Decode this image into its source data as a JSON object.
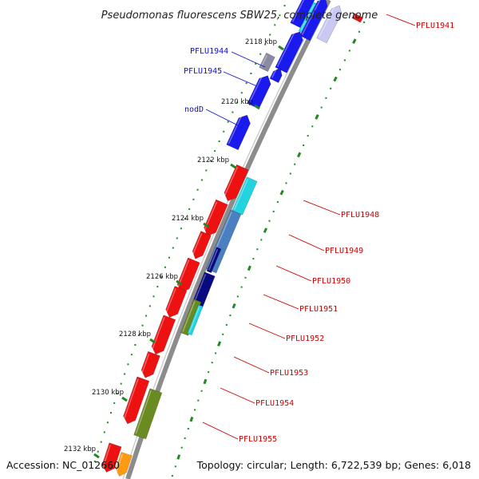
{
  "title": "Pseudomonas fluorescens SBW25, complete genome",
  "footer": {
    "accession": "Accession: NC_012660",
    "topology": "Topology: circular; Length: 6,722,539 bp; Genes: 6,018"
  },
  "colors": {
    "backbone": "#8c8c8c",
    "tick": "#1f8a1f",
    "forward_label": "#1010c8",
    "reverse_label": "#cc0000",
    "blue": "#1a1aee",
    "red": "#ee1111",
    "cyan": "#22d4e0",
    "steel": "#4a7fc0",
    "navy": "#0a0a80",
    "olive": "#6a8a22",
    "orange": "#ff9a10",
    "lavender": "#c9c9f2",
    "gray": "#8a8aa0"
  },
  "axis": {
    "unit": "kbp",
    "ticks": [
      {
        "kbp": 2118,
        "label": "2118 kbp"
      },
      {
        "kbp": 2120,
        "label": "2120 kbp"
      },
      {
        "kbp": 2122,
        "label": "2122 kbp"
      },
      {
        "kbp": 2124,
        "label": "2124 kbp"
      },
      {
        "kbp": 2126,
        "label": "2126 kbp"
      },
      {
        "kbp": 2128,
        "label": "2128 kbp"
      },
      {
        "kbp": 2130,
        "label": "2130 kbp"
      },
      {
        "kbp": 2132,
        "label": "2132 kbp"
      }
    ]
  },
  "labels": [
    {
      "text": "PFLU1944",
      "side": "forward"
    },
    {
      "text": "PFLU1945",
      "side": "forward"
    },
    {
      "text": "nodD",
      "side": "forward"
    },
    {
      "text": "PFLU1941",
      "side": "reverse"
    },
    {
      "text": "PFLU1948",
      "side": "reverse"
    },
    {
      "text": "PFLU1949",
      "side": "reverse"
    },
    {
      "text": "PFLU1950",
      "side": "reverse"
    },
    {
      "text": "PFLU1951",
      "side": "reverse"
    },
    {
      "text": "PFLU1952",
      "side": "reverse"
    },
    {
      "text": "PFLU1953",
      "side": "reverse"
    },
    {
      "text": "PFLU1954",
      "side": "reverse"
    },
    {
      "text": "PFLU1955",
      "side": "reverse"
    }
  ]
}
